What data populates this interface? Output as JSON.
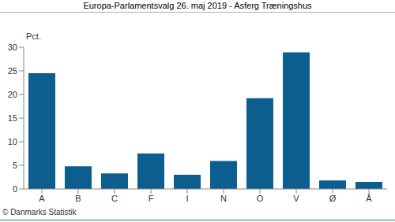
{
  "chart_data": {
    "type": "bar",
    "title": "Europa-Parlamentsvalg 26. maj 2019 - Asferg Træningshus",
    "ylabel": "Pct.",
    "annotation": "© Danmarks Statistik",
    "categories": [
      "A",
      "B",
      "C",
      "F",
      "I",
      "N",
      "O",
      "V",
      "Ø",
      "Å"
    ],
    "values": [
      24.5,
      4.8,
      3.3,
      7.5,
      3.0,
      5.9,
      19.2,
      28.9,
      1.8,
      1.5
    ],
    "color": "#0b5e8e",
    "ylim": [
      0,
      30
    ],
    "yticks": [
      0,
      5,
      10,
      15,
      20,
      25,
      30
    ],
    "grid": false
  }
}
